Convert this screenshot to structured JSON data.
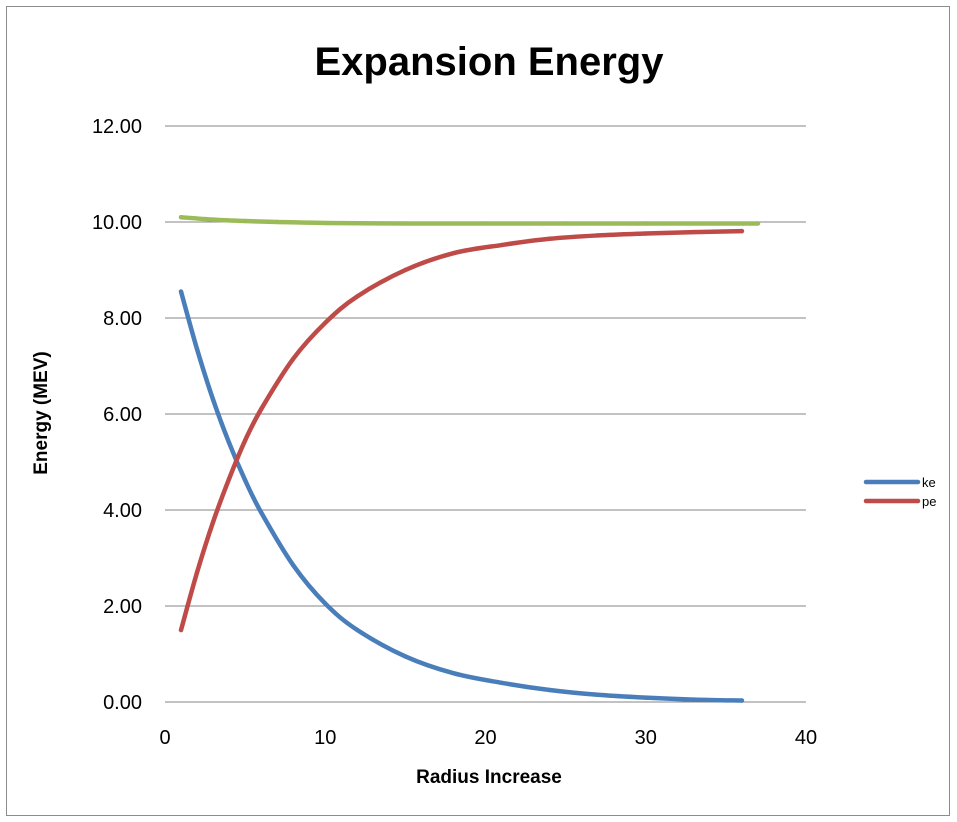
{
  "chart_data": {
    "type": "line",
    "title": "Expansion Energy",
    "xlabel": "Radius Increase",
    "ylabel": "Energy (MEV)",
    "xlim": [
      0,
      40
    ],
    "ylim": [
      0,
      12
    ],
    "x_ticks": [
      "0",
      "10",
      "20",
      "30",
      "40"
    ],
    "y_ticks": [
      "0.00",
      "2.00",
      "4.00",
      "6.00",
      "8.00",
      "10.00",
      "12.00"
    ],
    "grid": "horizontal",
    "legend_position": "right",
    "series": [
      {
        "name": "ke",
        "color": "#4a7ebb",
        "x": [
          1,
          2,
          3,
          4,
          5,
          6,
          8,
          10,
          12,
          15,
          18,
          21,
          24,
          27,
          30,
          33,
          36
        ],
        "y": [
          8.55,
          7.35,
          6.3,
          5.4,
          4.62,
          3.95,
          2.85,
          2.05,
          1.5,
          0.95,
          0.6,
          0.4,
          0.25,
          0.15,
          0.09,
          0.05,
          0.03
        ]
      },
      {
        "name": "pe",
        "color": "#be4b48",
        "x": [
          1,
          2,
          3,
          4,
          5,
          6,
          8,
          10,
          12,
          15,
          18,
          21,
          24,
          27,
          30,
          33,
          36
        ],
        "y": [
          1.5,
          2.7,
          3.75,
          4.65,
          5.45,
          6.1,
          7.15,
          7.9,
          8.45,
          9.0,
          9.35,
          9.52,
          9.65,
          9.72,
          9.76,
          9.79,
          9.81
        ]
      },
      {
        "color": "#9bbb59",
        "x": [
          1,
          3,
          5,
          7,
          10,
          15,
          20,
          25,
          30,
          37
        ],
        "y": [
          10.1,
          10.05,
          10.02,
          10.0,
          9.98,
          9.97,
          9.97,
          9.97,
          9.97,
          9.97
        ]
      }
    ]
  }
}
